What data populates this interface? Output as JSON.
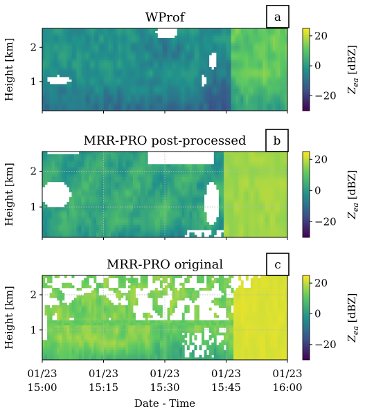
{
  "chart_data": [
    {
      "type": "heatmap",
      "panel_label": "a",
      "title": "WProf",
      "ylabel": "Height [km]",
      "ylim": [
        0.15,
        2.55
      ],
      "yticks": [
        1,
        2
      ],
      "xlim": [
        0,
        60
      ],
      "colorbar": {
        "label": "Z_ea [dBZ]",
        "range": [
          -30,
          25
        ],
        "ticks": [
          20,
          0,
          -20
        ]
      },
      "grid": "off"
    },
    {
      "type": "heatmap",
      "panel_label": "b",
      "title": "MRR-PRO post-processed",
      "ylabel": "Height [km]",
      "ylim": [
        0.15,
        2.55
      ],
      "yticks": [
        1,
        2
      ],
      "xlim": [
        0,
        60
      ],
      "colorbar": {
        "label": "Z_ea [dBZ]",
        "range": [
          -30,
          25
        ],
        "ticks": [
          20,
          0,
          -20
        ]
      },
      "grid": "on"
    },
    {
      "type": "heatmap",
      "panel_label": "c",
      "title": "MRR-PRO original",
      "ylabel": "Height [km]",
      "ylim": [
        0.15,
        2.55
      ],
      "yticks": [
        1,
        2
      ],
      "xlim": [
        0,
        60
      ],
      "xlabel": "Date - Time",
      "xticks": [
        {
          "value": 0,
          "line1": "01/23",
          "line2": "15:00"
        },
        {
          "value": 15,
          "line1": "01/23",
          "line2": "15:15"
        },
        {
          "value": 30,
          "line1": "01/23",
          "line2": "15:30"
        },
        {
          "value": 45,
          "line1": "01/23",
          "line2": "15:45"
        },
        {
          "value": 60,
          "line1": "01/23",
          "line2": "16:00"
        }
      ],
      "colorbar": {
        "label": "Z_ea [dBZ]",
        "range": [
          -30,
          25
        ],
        "ticks": [
          20,
          0,
          -20
        ]
      },
      "grid": "on"
    }
  ],
  "colormap": [
    "#440154",
    "#3b528b",
    "#21918c",
    "#5ec962",
    "#fde725"
  ],
  "colorbar_label_main": "Z",
  "colorbar_label_sub": "ea",
  "colorbar_label_unit": " [dBZ]"
}
